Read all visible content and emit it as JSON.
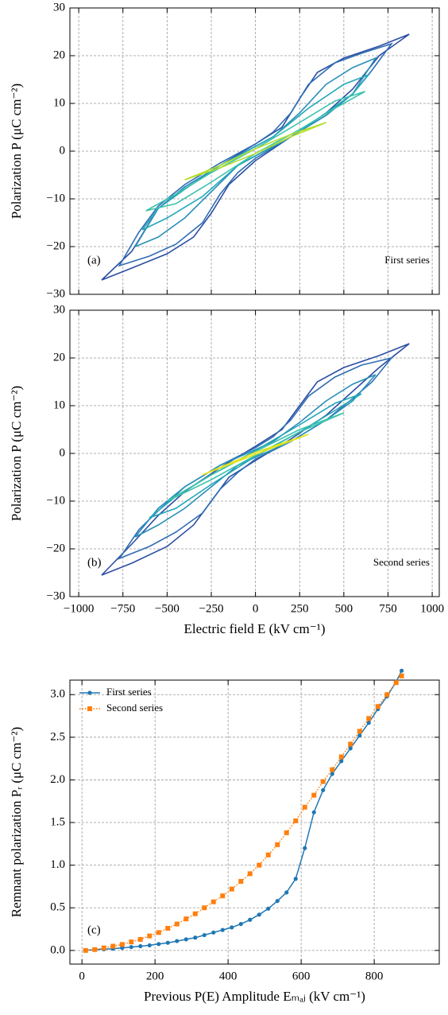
{
  "chart_data": [
    {
      "type": "loops",
      "ylabel": "Polarization P (μC cm⁻²)",
      "panel_label": "(a)",
      "annotation": "First series",
      "xlim": [
        -1050,
        1040
      ],
      "ylim": [
        -30,
        30
      ],
      "grid": true,
      "xticks": [
        -1000,
        -750,
        -500,
        -250,
        0,
        250,
        500,
        750,
        1000
      ],
      "yticks": [
        {
          "value": -30,
          "label": "−30"
        },
        {
          "value": -20,
          "label": "−20"
        },
        {
          "value": -10,
          "label": "−10"
        },
        0,
        10,
        20,
        30
      ],
      "series": [
        {
          "color": "#2c4ea3",
          "x": [
            870,
            700,
            500,
            350,
            250,
            150,
            0,
            -200,
            -400,
            -550,
            -700,
            -870,
            -700,
            -500,
            -350,
            -250,
            -150,
            0,
            200,
            400,
            550,
            700,
            870
          ],
          "values": [
            24.5,
            22,
            19.5,
            16.5,
            11,
            5,
            1.5,
            -3,
            -7.5,
            -12,
            -21,
            -27,
            -24.5,
            -21.5,
            -18,
            -13,
            -7,
            -2,
            3,
            8,
            13,
            20,
            24.5
          ]
        },
        {
          "color": "#2f6db4",
          "x": [
            770,
            600,
            450,
            300,
            200,
            100,
            0,
            -200,
            -400,
            -550,
            -660,
            -770,
            -600,
            -450,
            -300,
            -200,
            -100,
            0,
            200,
            400,
            550,
            660,
            770
          ],
          "values": [
            22.5,
            20.5,
            18.5,
            14,
            8,
            4,
            1.5,
            -2.5,
            -7,
            -11.5,
            -17,
            -24,
            -22,
            -19.5,
            -15,
            -9,
            -4.5,
            -1.5,
            3,
            7.5,
            12,
            17,
            22.5
          ]
        },
        {
          "color": "#2a8fb8",
          "x": [
            680,
            550,
            400,
            250,
            100,
            0,
            -200,
            -400,
            -550,
            -680,
            -550,
            -400,
            -250,
            -100,
            0,
            200,
            400,
            550,
            680
          ],
          "values": [
            19.5,
            17.5,
            14,
            8,
            3,
            1,
            -3,
            -7.5,
            -12,
            -20,
            -18,
            -14,
            -8.5,
            -3,
            -1,
            3,
            7.5,
            12,
            19.5
          ]
        },
        {
          "color": "#22a7b9",
          "x": [
            640,
            500,
            300,
            100,
            0,
            -200,
            -400,
            -550,
            -640,
            -500,
            -300,
            -100,
            0,
            200,
            400,
            550,
            640
          ],
          "values": [
            16,
            14,
            9,
            3,
            1,
            -3,
            -8,
            -12,
            -16.5,
            -14,
            -9.5,
            -3,
            -1,
            3,
            8,
            12,
            16
          ]
        },
        {
          "color": "#3cc2ad",
          "x": [
            620,
            450,
            250,
            0,
            -250,
            -450,
            -620,
            -450,
            -250,
            0,
            250,
            450,
            620
          ],
          "values": [
            12.5,
            10.5,
            6,
            0.5,
            -4.5,
            -9,
            -12.5,
            -11,
            -6.5,
            -0.5,
            4.5,
            9,
            12.5
          ]
        },
        {
          "color": "#b6de2b",
          "x": [
            400,
            200,
            0,
            -200,
            -400,
            -200,
            0,
            200,
            400
          ],
          "values": [
            6,
            3.5,
            0.5,
            -3,
            -6,
            -3.5,
            -0.5,
            3,
            6
          ]
        }
      ]
    },
    {
      "type": "loops",
      "ylabel": "Polarization P (μC cm⁻²)",
      "xlabel": "Electric field E  (kV cm⁻¹)",
      "panel_label": "(b)",
      "annotation": "Second series",
      "xlim": [
        -1050,
        1040
      ],
      "ylim": [
        -30,
        30
      ],
      "grid": true,
      "xticks": [
        {
          "value": -1000,
          "label": "−1000"
        },
        {
          "value": -750,
          "label": "−750"
        },
        {
          "value": -500,
          "label": "−500"
        },
        {
          "value": -250,
          "label": "−250"
        },
        0,
        250,
        500,
        750,
        1000
      ],
      "yticks": [
        {
          "value": -30,
          "label": "−30"
        },
        {
          "value": -20,
          "label": "−20"
        },
        {
          "value": -10,
          "label": "−10"
        },
        0,
        10,
        20,
        30
      ],
      "series": [
        {
          "color": "#2c4ea3",
          "x": [
            870,
            700,
            500,
            350,
            250,
            150,
            0,
            -200,
            -400,
            -550,
            -700,
            -870,
            -700,
            -500,
            -350,
            -250,
            -150,
            0,
            200,
            400,
            550,
            700,
            870
          ],
          "values": [
            23,
            20.5,
            18,
            15,
            10,
            5,
            1.5,
            -3,
            -8,
            -13,
            -19,
            -25.5,
            -23,
            -19.5,
            -15,
            -10,
            -5,
            -1.5,
            3,
            8,
            13,
            18,
            23
          ]
        },
        {
          "color": "#2f6db4",
          "x": [
            770,
            600,
            450,
            300,
            200,
            100,
            0,
            -200,
            -400,
            -550,
            -660,
            -770,
            -600,
            -450,
            -300,
            -200,
            -100,
            0,
            200,
            400,
            550,
            660,
            770
          ],
          "values": [
            20,
            18.5,
            16,
            12,
            7,
            3.5,
            1.2,
            -2.5,
            -7,
            -12,
            -16,
            -22,
            -19.5,
            -16.5,
            -12.5,
            -7.5,
            -4,
            -1.2,
            2.5,
            7,
            11.5,
            15,
            20
          ]
        },
        {
          "color": "#2a8fb8",
          "x": [
            680,
            550,
            400,
            250,
            100,
            0,
            -200,
            -400,
            -550,
            -680,
            -550,
            -400,
            -250,
            -100,
            0,
            200,
            400,
            550,
            680
          ],
          "values": [
            16.5,
            14.5,
            11,
            6.5,
            2.5,
            0.8,
            -2.5,
            -7,
            -11.5,
            -17.5,
            -15,
            -11.5,
            -7,
            -2.5,
            -0.8,
            2.5,
            7,
            11,
            16.5
          ]
        },
        {
          "color": "#22a7b9",
          "x": [
            600,
            450,
            250,
            0,
            -250,
            -450,
            -600,
            -450,
            -250,
            0,
            250,
            450,
            600
          ],
          "values": [
            12.5,
            10.5,
            6,
            0.6,
            -4.5,
            -9,
            -13.5,
            -11.5,
            -6.5,
            -0.6,
            4.5,
            9,
            12.5
          ]
        },
        {
          "color": "#3cc2ad",
          "x": [
            500,
            250,
            0,
            -250,
            -500,
            -250,
            0,
            250,
            500
          ],
          "values": [
            8.5,
            5,
            0.4,
            -4.5,
            -10,
            -5.5,
            -0.4,
            4.5,
            8.5
          ]
        },
        {
          "color": "#e3e418",
          "x": [
            300,
            0,
            -300,
            0,
            300
          ],
          "values": [
            4,
            0.2,
            -4.5,
            -0.2,
            4
          ]
        }
      ]
    },
    {
      "type": "line",
      "ylabel": "Remnant polarization Pᵣ (μC cm⁻²)",
      "xlabel": "Previous P(E) Amplitude Eₘₐⱼ  (kV cm⁻¹)",
      "panel_label": "(c)",
      "xlim": [
        -33,
        978
      ],
      "ylim": [
        -0.16,
        3.17
      ],
      "grid": true,
      "legend": "upper left",
      "xticks": [
        0,
        200,
        400,
        600,
        800
      ],
      "yticks": [
        {
          "value": 0,
          "label": "0.0"
        },
        0.5,
        {
          "value": 1,
          "label": "1.0"
        },
        1.5,
        {
          "value": 2,
          "label": "2.0"
        },
        2.5,
        {
          "value": 3,
          "label": "3.0"
        }
      ],
      "x": [
        10,
        35,
        60,
        85,
        110,
        135,
        160,
        185,
        210,
        235,
        260,
        285,
        310,
        335,
        360,
        385,
        410,
        435,
        460,
        485,
        510,
        535,
        560,
        585,
        610,
        635,
        660,
        685,
        710,
        735,
        760,
        785,
        810,
        835,
        860,
        875
      ],
      "series": [
        {
          "name": "First series",
          "color": "#1f77b4",
          "marker": "circle",
          "linestyle": "solid",
          "values": [
            0,
            0.01,
            0.015,
            0.02,
            0.03,
            0.04,
            0.05,
            0.06,
            0.075,
            0.09,
            0.11,
            0.13,
            0.15,
            0.18,
            0.21,
            0.24,
            0.27,
            0.31,
            0.36,
            0.42,
            0.49,
            0.58,
            0.68,
            0.84,
            1.2,
            1.62,
            1.88,
            2.07,
            2.22,
            2.37,
            2.52,
            2.67,
            2.83,
            2.98,
            3.15,
            3.28
          ]
        },
        {
          "name": "Second series",
          "color": "#ff7f0e",
          "marker": "square",
          "linestyle": "dotted",
          "values": [
            0,
            0.01,
            0.03,
            0.05,
            0.07,
            0.1,
            0.13,
            0.17,
            0.21,
            0.26,
            0.31,
            0.37,
            0.43,
            0.5,
            0.57,
            0.64,
            0.72,
            0.81,
            0.9,
            1.0,
            1.12,
            1.24,
            1.38,
            1.52,
            1.68,
            1.82,
            1.98,
            2.12,
            2.27,
            2.42,
            2.57,
            2.72,
            2.86,
            3.0,
            3.14,
            3.22
          ]
        }
      ]
    }
  ]
}
